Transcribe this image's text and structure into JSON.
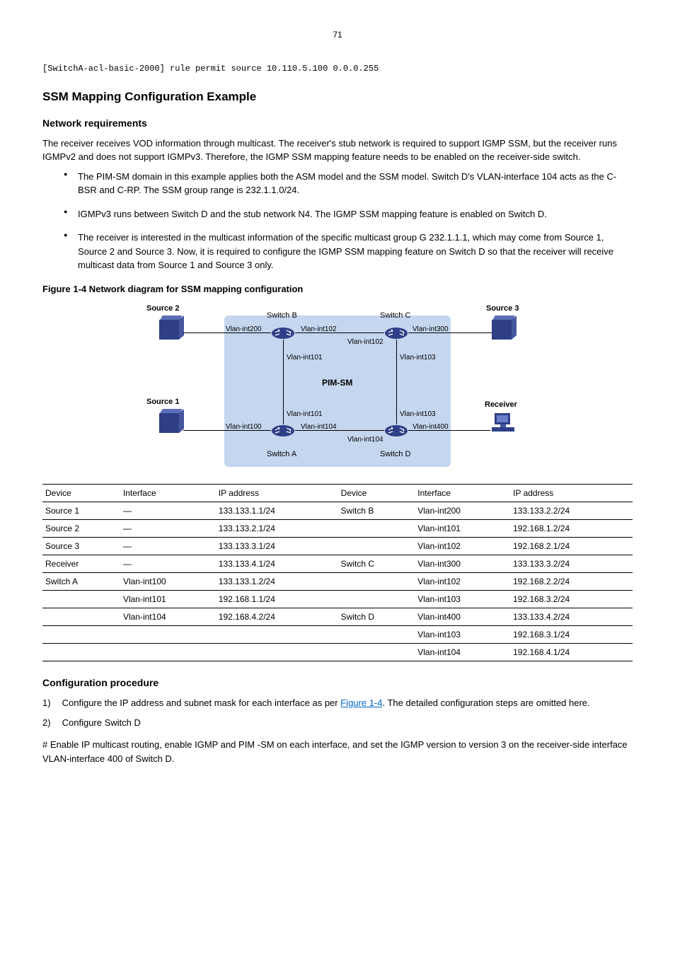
{
  "page_number": "71",
  "code_line": "[SwitchA-acl-basic-2000] rule permit source 10.110.5.100 0.0.0.255",
  "section_title": "SSM Mapping Configuration Example",
  "network_req_title": "Network requirements",
  "intro": "The receiver receives VOD information through multicast. The receiver's stub network is required to support IGMP SSM, but the receiver runs IGMPv2 and does not support IGMPv3. Therefore, the IGMP SSM mapping feature needs to be enabled on the receiver-side switch.",
  "bullets": [
    "The PIM-SM domain in this example applies both the ASM model and the SSM model. Switch D's VLAN-interface 104 acts as the C-BSR and C-RP. The SSM group range is 232.1.1.0/24.",
    "IGMPv3 runs between Switch D and the stub network N4. The IGMP SSM mapping feature is enabled on Switch D.",
    "The receiver is interested in the multicast information of the specific multicast group G 232.1.1.1, which may come from Source 1, Source 2 and Source 3. Now, it is required to configure the IGMP SSM mapping feature on Switch D so that the receiver will receive multicast data from Source 1 and Source 3 only."
  ],
  "figure_caption": "Figure 1-4 Network diagram for SSM mapping configuration",
  "diagram": {
    "pim_label": "PIM-SM",
    "nodes": {
      "source1": "Source 1",
      "source2": "Source 2",
      "source3": "Source 3",
      "receiver": "Receiver",
      "switchA": "Switch A",
      "switchB": "Switch B",
      "switchC": "Switch C",
      "switchD": "Switch D"
    },
    "ifaces": {
      "b200": "Vlan-int200",
      "b102": "Vlan-int102",
      "b101": "Vlan-int101",
      "c102": "Vlan-int102",
      "c300": "Vlan-int300",
      "c103": "Vlan-int103",
      "a100": "Vlan-int100",
      "a101": "Vlan-int101",
      "a104": "Vlan-int104",
      "d104": "Vlan-int104",
      "d103": "Vlan-int103",
      "d400": "Vlan-int400"
    }
  },
  "table": {
    "headers": [
      "Device",
      "Interface",
      "IP address",
      "Device",
      "Interface",
      "IP address"
    ],
    "rows": [
      [
        "Source 1",
        "—",
        "133.133.1.1/24",
        "Switch B",
        "Vlan-int200",
        "133.133.2.2/24"
      ],
      [
        "Source 2",
        "—",
        "133.133.2.1/24",
        "",
        "Vlan-int101",
        "192.168.1.2/24"
      ],
      [
        "Source 3",
        "—",
        "133.133.3.1/24",
        "",
        "Vlan-int102",
        "192.168.2.1/24"
      ],
      [
        "Receiver",
        "—",
        "133.133.4.1/24",
        "Switch C",
        "Vlan-int300",
        "133.133.3.2/24"
      ],
      [
        "Switch A",
        "Vlan-int100",
        "133.133.1.2/24",
        "",
        "Vlan-int102",
        "192.168.2.2/24"
      ],
      [
        "",
        "Vlan-int101",
        "192.168.1.1/24",
        "",
        "Vlan-int103",
        "192.168.3.2/24"
      ],
      [
        "",
        "Vlan-int104",
        "192.168.4.2/24",
        "Switch D",
        "Vlan-int400",
        "133.133.4.2/24"
      ],
      [
        "",
        "",
        "",
        "",
        "Vlan-int103",
        "192.168.3.1/24"
      ],
      [
        "",
        "",
        "",
        "",
        "Vlan-int104",
        "192.168.4.1/24"
      ]
    ]
  },
  "config_proc_title": "Configuration procedure",
  "steps": [
    {
      "num": "1)",
      "text": "Configure the IP address and subnet mask for each interface as per ",
      "link": "Figure 1-4",
      "tail": ". The detailed configuration steps are omitted here."
    },
    {
      "num": "2)",
      "text": "Configure Switch D"
    }
  ],
  "last_line": "# Enable IP multicast routing, enable IGMP and PIM -SM on each interface, and set the IGMP version to version 3 on the receiver-side interface VLAN-interface 400 of Switch D.",
  "colors": {
    "link": "#0066cc",
    "diagram_bg": "#c5d6ef",
    "device_dark": "#2f3f87",
    "device_mid": "#45569d"
  }
}
